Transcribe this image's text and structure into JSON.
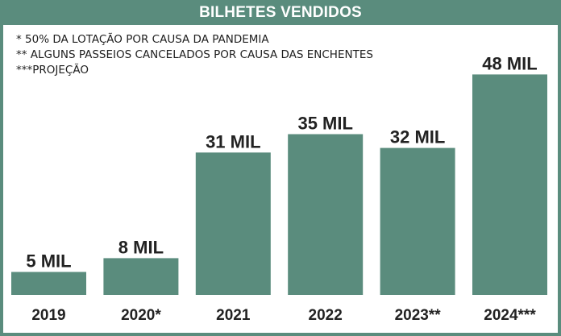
{
  "title": "BILHETES VENDIDOS",
  "notes": [
    "* 50% DA LOTAÇÃO POR CAUSA DA PANDEMIA",
    "** ALGUNS PASSEIOS CANCELADOS POR CAUSA DAS ENCHENTES",
    "***PROJEÇÃO"
  ],
  "colors": {
    "bar": "#5a8c7d",
    "frame": "#5a8c7d",
    "text": "#222222"
  },
  "chart_data": {
    "type": "bar",
    "title": "BILHETES VENDIDOS",
    "categories": [
      "2019",
      "2020*",
      "2021",
      "2022",
      "2023**",
      "2024***"
    ],
    "values": [
      5,
      8,
      31,
      35,
      32,
      48
    ],
    "value_labels": [
      "5 MIL",
      "8 MIL",
      "31 MIL",
      "35 MIL",
      "32 MIL",
      "48 MIL"
    ],
    "unit": "MIL",
    "xlabel": "",
    "ylabel": "",
    "grid": false,
    "legend": "none"
  }
}
